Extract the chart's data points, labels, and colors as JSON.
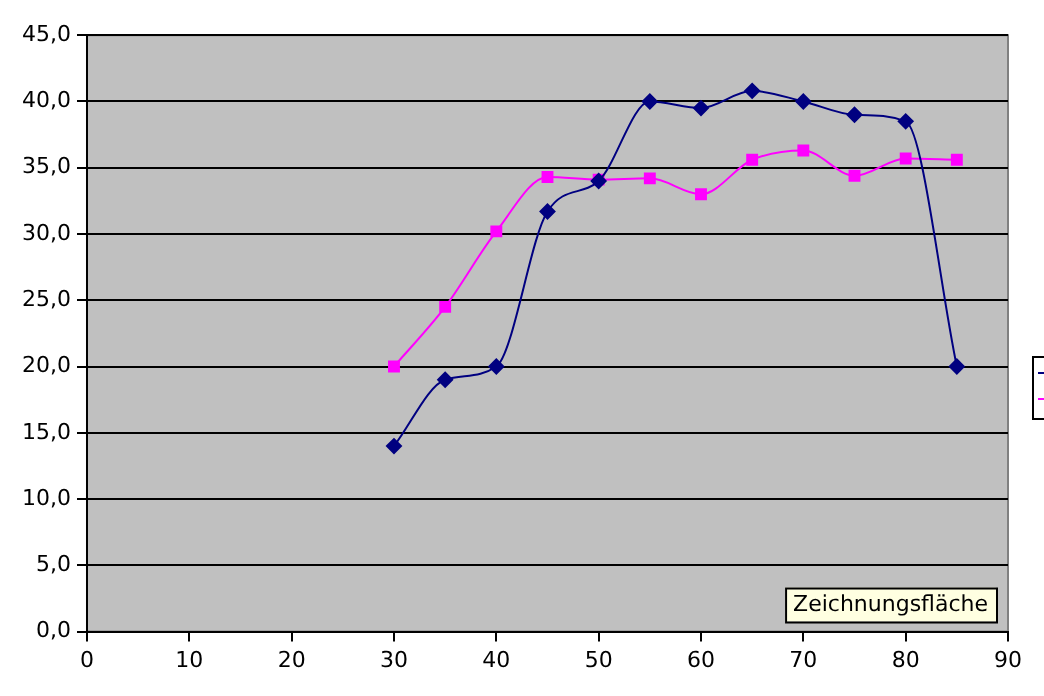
{
  "chart_data": {
    "type": "line",
    "x": [
      30,
      35,
      40,
      45,
      50,
      55,
      60,
      65,
      70,
      75,
      80,
      85
    ],
    "series": [
      {
        "color": "#000080",
        "marker": "diamond",
        "values": [
          14.0,
          19.0,
          20.0,
          31.7,
          34.0,
          40.0,
          39.5,
          40.8,
          40.0,
          39.0,
          38.5,
          20.0
        ]
      },
      {
        "color": "#ff00ff",
        "marker": "square",
        "values": [
          20.0,
          24.5,
          30.2,
          34.3,
          34.1,
          34.2,
          33.0,
          35.6,
          36.3,
          34.4,
          35.7,
          35.6
        ]
      }
    ],
    "xlim": [
      0,
      90
    ],
    "xticks": [
      0,
      10,
      20,
      30,
      40,
      50,
      60,
      70,
      80,
      90
    ],
    "ylim": [
      0,
      45
    ],
    "yticks": [
      {
        "value": 0,
        "label": "0,0"
      },
      {
        "value": 5,
        "label": "5,0"
      },
      {
        "value": 10,
        "label": "10,0"
      },
      {
        "value": 15,
        "label": "15,0"
      },
      {
        "value": 20,
        "label": "20,0"
      },
      {
        "value": 25,
        "label": "25,0"
      },
      {
        "value": 30,
        "label": "30,0"
      },
      {
        "value": 35,
        "label": "35,0"
      },
      {
        "value": 40,
        "label": "40,0"
      },
      {
        "value": 45,
        "label": "45,0"
      }
    ],
    "grid": "y",
    "line_style": "solid",
    "annotations": [
      "Zeichnungsfläche"
    ]
  }
}
